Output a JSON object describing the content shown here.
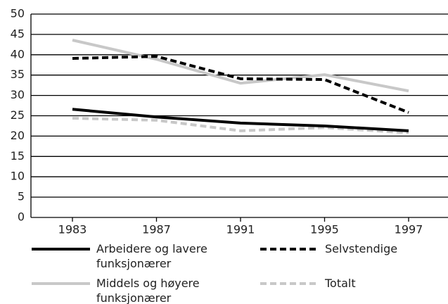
{
  "chart_data": {
    "type": "line",
    "categories": [
      "1983",
      "1987",
      "1991",
      "1995",
      "1997"
    ],
    "series": [
      {
        "name": "Arbeidere og lavere funksjonærer",
        "color": "#000000",
        "dashed": false,
        "values": [
          26.6,
          24.7,
          23.2,
          22.5,
          21.3
        ]
      },
      {
        "name": "Selvstendige",
        "color": "#000000",
        "dashed": true,
        "values": [
          39.1,
          39.6,
          34.1,
          33.9,
          25.8
        ]
      },
      {
        "name": "Middels og høyere funksjonærer",
        "color": "#c8c8c8",
        "dashed": false,
        "values": [
          43.6,
          38.9,
          33.0,
          35.1,
          31.1
        ]
      },
      {
        "name": "Totalt",
        "color": "#c8c8c8",
        "dashed": true,
        "values": [
          24.4,
          23.9,
          21.3,
          22.1,
          20.8
        ]
      }
    ],
    "ylim": [
      0,
      50
    ],
    "yticks": [
      0,
      5,
      10,
      15,
      20,
      25,
      30,
      35,
      40,
      45,
      50
    ],
    "grid": true
  }
}
